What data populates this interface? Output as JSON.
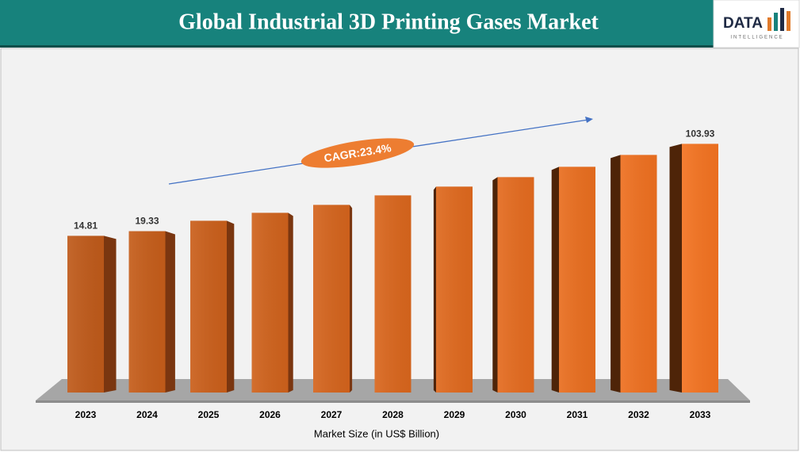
{
  "logo": {
    "text": "DATA",
    "subtitle": "INTELLIGENCE"
  },
  "chart_data": {
    "type": "bar3d",
    "title": "Global Industrial 3D Printing Gases Market",
    "x_label": "Market Size (in US$ Billion)",
    "annotation": "CAGR:23.4%",
    "categories": [
      "2023",
      "2024",
      "2025",
      "2026",
      "2027",
      "2028",
      "2029",
      "2030",
      "2031",
      "2032",
      "2033"
    ],
    "values": [
      14.81,
      19.33,
      29.4,
      37.1,
      44.8,
      54,
      62.5,
      71.7,
      81.7,
      93.2,
      103.93
    ],
    "value_labels": [
      "14.81",
      "19.33",
      null,
      null,
      null,
      null,
      null,
      null,
      null,
      null,
      "103.93"
    ],
    "color": "#d0621c",
    "ylim": [
      -137,
      110
    ]
  }
}
